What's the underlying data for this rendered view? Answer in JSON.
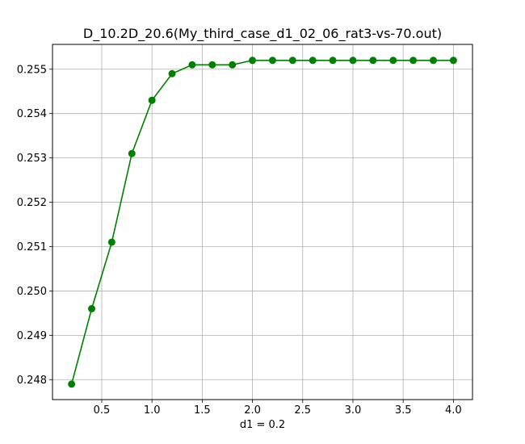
{
  "chart_data": {
    "type": "line",
    "title": "D_10.2D_20.6(My_third_case_d1_02_06_rat3-vs-70.out)",
    "xlabel": "d1 = 0.2",
    "ylabel": "",
    "x": [
      0.2,
      0.4,
      0.6,
      0.8,
      1.0,
      1.2,
      1.4,
      1.6,
      1.8,
      2.0,
      2.2,
      2.4,
      2.6,
      2.8,
      3.0,
      3.2,
      3.4,
      3.6,
      3.8,
      4.0
    ],
    "series": [
      {
        "values": [
          0.2479,
          0.2496,
          0.2511,
          0.2531,
          0.2543,
          0.2549,
          0.2551,
          0.2551,
          0.2551,
          0.2552,
          0.2552,
          0.2552,
          0.2552,
          0.2552,
          0.2552,
          0.2552,
          0.2552,
          0.2552,
          0.2552,
          0.2552
        ],
        "color": "#008000",
        "marker": "circle"
      }
    ],
    "xlim": [
      0.01,
      4.19
    ],
    "ylim": [
      0.24755,
      0.25556
    ],
    "xticks": [
      0.5,
      1.0,
      1.5,
      2.0,
      2.5,
      3.0,
      3.5,
      4.0
    ],
    "xtick_labels": [
      "0.5",
      "1.0",
      "1.5",
      "2.0",
      "2.5",
      "3.0",
      "3.5",
      "4.0"
    ],
    "yticks": [
      0.248,
      0.249,
      0.25,
      0.251,
      0.252,
      0.253,
      0.254,
      0.255
    ],
    "ytick_labels": [
      "0.248",
      "0.249",
      "0.250",
      "0.251",
      "0.252",
      "0.253",
      "0.254",
      "0.255"
    ],
    "grid": true,
    "legend": "none"
  }
}
